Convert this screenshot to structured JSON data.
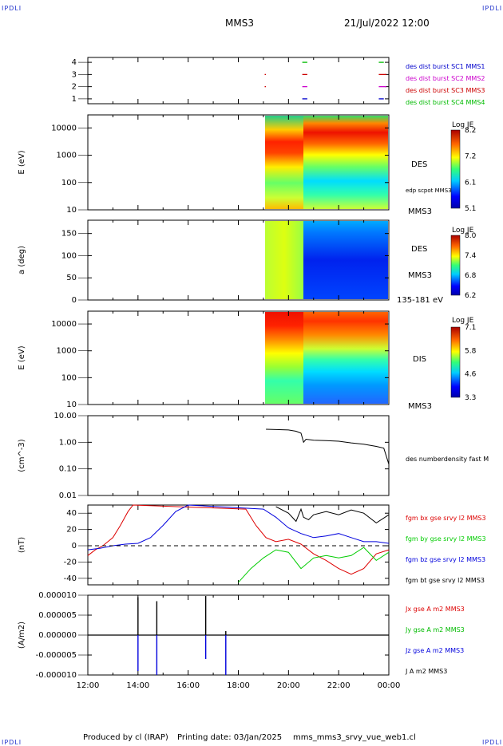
{
  "header": {
    "corner_tl": "IPDLI",
    "corner_tr": "IPDLI",
    "spacecraft": "MMS3",
    "datetime": "21/Jul/2022 12:00"
  },
  "footer": {
    "produced_by": "Produced by cl (IRAP)",
    "printing_date": "Printing date: 03/Jan/2025",
    "filename": "mms_mms3_srvy_vue_web1.cl",
    "corner_bl": "IPDLI",
    "corner_br": "IPDLI"
  },
  "time_axis": {
    "ticks": [
      "12:00",
      "14:00",
      "16:00",
      "18:00",
      "20:00",
      "22:00",
      "00:00"
    ],
    "start_hour": 12,
    "end_hour": 24
  },
  "colors": {
    "jet_low": "#0000aa",
    "jet_high": "#aa0000",
    "bx": "#dd0000",
    "by": "#00cc00",
    "bz": "#0000dd",
    "bt": "#000000",
    "dashed_zero": "#000000"
  },
  "chart_data": [
    {
      "type": "scatter",
      "panel": "burst_availability",
      "ylabel": "",
      "yticks": [
        "1",
        "2",
        "3",
        "4"
      ],
      "ylim": [
        0.6,
        4.4
      ],
      "legend": [
        {
          "label": "des dist burst SC1 MMS1",
          "color": "#0000cc",
          "level": 4
        },
        {
          "label": "des dist burst SC2 MMS2",
          "color": "#cc00cc",
          "level": 3
        },
        {
          "label": "des dist burst SC3 MMS3",
          "color": "#cc0000",
          "level": 2
        },
        {
          "label": "des dist burst SC4 MMS4",
          "color": "#00bb00",
          "level": 1
        }
      ],
      "segments": [
        {
          "level": 4,
          "start": 20.55,
          "end": 20.75,
          "color": "#00bb00"
        },
        {
          "level": 3,
          "start": 19.05,
          "end": 19.1,
          "color": "#cc0000"
        },
        {
          "level": 3,
          "start": 20.55,
          "end": 20.75,
          "color": "#cc0000"
        },
        {
          "level": 2,
          "start": 19.05,
          "end": 19.1,
          "color": "#cc0000"
        },
        {
          "level": 2,
          "start": 20.55,
          "end": 20.75,
          "color": "#cc00cc"
        },
        {
          "level": 1,
          "start": 20.55,
          "end": 20.75,
          "color": "#0000cc"
        },
        {
          "level": 4,
          "start": 23.6,
          "end": 23.8,
          "color": "#00bb00"
        },
        {
          "level": 3,
          "start": 23.6,
          "end": 23.9,
          "color": "#cc0000"
        },
        {
          "level": 2,
          "start": 23.6,
          "end": 23.9,
          "color": "#cc00cc"
        },
        {
          "level": 1,
          "start": 23.6,
          "end": 23.8,
          "color": "#0000cc"
        }
      ]
    },
    {
      "type": "heatmap",
      "panel": "des_energy",
      "ylabel": "E (eV)",
      "yticks": [
        "10",
        "100",
        "1000",
        "10000"
      ],
      "ylim": [
        10,
        30000
      ],
      "y_scale": "log",
      "label": "DES",
      "sublabels": [
        "edp scpot MMS3",
        "MMS3"
      ],
      "colorbar": {
        "title": "Log JE",
        "ticks": [
          "8.2",
          "7.2",
          "6.1",
          "5.1"
        ],
        "range": [
          5.1,
          8.2
        ]
      },
      "data_start_hour": 19.1
    },
    {
      "type": "heatmap",
      "panel": "des_pitch",
      "ylabel": "a (deg)",
      "yticks": [
        "0",
        "50",
        "100",
        "150"
      ],
      "ylim": [
        0,
        180
      ],
      "label": "DES",
      "sublabels": [
        "MMS3",
        "135-181 eV"
      ],
      "colorbar": {
        "title": "Log JE",
        "ticks": [
          "8.0",
          "7.4",
          "6.8",
          "6.2"
        ],
        "range": [
          6.2,
          8.0
        ]
      },
      "data_start_hour": 19.1
    },
    {
      "type": "heatmap",
      "panel": "dis_energy",
      "ylabel": "E (eV)",
      "yticks": [
        "10",
        "100",
        "1000",
        "10000"
      ],
      "ylim": [
        10,
        30000
      ],
      "y_scale": "log",
      "label": "DIS",
      "sublabels": [
        "MMS3"
      ],
      "colorbar": {
        "title": "Log JE",
        "ticks": [
          "7.1",
          "5.8",
          "4.6",
          "3.3"
        ],
        "range": [
          3.3,
          7.1
        ]
      },
      "data_start_hour": 19.1
    },
    {
      "type": "line",
      "panel": "density",
      "ylabel": "(cm^-3)",
      "yticks": [
        "0.01",
        "0.10",
        "1.00",
        "10.00"
      ],
      "ylim": [
        0.01,
        10
      ],
      "y_scale": "log",
      "series": [
        {
          "name": "des numberdensity fast M",
          "color": "#000000",
          "x": [
            19.1,
            19.5,
            20.0,
            20.3,
            20.5,
            20.6,
            20.7,
            21.0,
            21.5,
            22.0,
            22.5,
            23.0,
            23.5,
            23.8,
            24.0
          ],
          "y": [
            3.1,
            3.0,
            2.9,
            2.6,
            2.2,
            1.0,
            1.3,
            1.2,
            1.15,
            1.1,
            0.95,
            0.85,
            0.7,
            0.6,
            0.15
          ]
        }
      ]
    },
    {
      "type": "line",
      "panel": "magnetic_field",
      "ylabel": "(nT)",
      "yticks": [
        "-40",
        "-20",
        "0",
        "20",
        "40"
      ],
      "ylim": [
        -48,
        50
      ],
      "series": [
        {
          "name": "fgm bx gse srvy l2 MMS3",
          "color": "#dd0000",
          "x": [
            12.0,
            12.3,
            12.6,
            13.0,
            13.3,
            13.6,
            13.8,
            18.3,
            18.7,
            19.1,
            19.5,
            20.0,
            20.5,
            21.0,
            21.5,
            22.0,
            22.5,
            23.0,
            23.5,
            24.0
          ],
          "y": [
            -12,
            -5,
            0,
            10,
            25,
            42,
            50,
            45,
            25,
            10,
            5,
            8,
            2,
            -10,
            -18,
            -28,
            -35,
            -28,
            -10,
            -5
          ]
        },
        {
          "name": "fgm by gse srvy l2 MMS3",
          "color": "#00cc00",
          "x": [
            18.0,
            18.5,
            19.0,
            19.5,
            20.0,
            20.5,
            21.0,
            21.5,
            22.0,
            22.5,
            23.0,
            23.5,
            24.0
          ],
          "y": [
            -45,
            -28,
            -15,
            -5,
            -8,
            -28,
            -15,
            -12,
            -15,
            -12,
            -2,
            -18,
            -8
          ]
        },
        {
          "name": "fgm bz gse srvy l2 MMS3",
          "color": "#0000dd",
          "x": [
            12.0,
            12.5,
            13.0,
            13.5,
            14.0,
            14.5,
            15.0,
            15.5,
            16.0,
            19.0,
            19.5,
            20.0,
            20.5,
            21.0,
            21.5,
            22.0,
            22.5,
            23.0,
            23.5,
            24.0
          ],
          "y": [
            -5,
            -3,
            0,
            2,
            3,
            10,
            25,
            42,
            50,
            45,
            35,
            22,
            15,
            10,
            12,
            15,
            10,
            5,
            5,
            3
          ]
        },
        {
          "name": "fgm bt gse srvy l2 MMS3",
          "color": "#000000",
          "x": [
            19.5,
            20.0,
            20.3,
            20.5,
            20.6,
            20.8,
            21.0,
            21.5,
            22.0,
            22.5,
            23.0,
            23.5,
            24.0
          ],
          "y": [
            48,
            40,
            30,
            45,
            35,
            32,
            38,
            42,
            38,
            44,
            40,
            28,
            38
          ]
        }
      ],
      "zero_line": true
    },
    {
      "type": "line",
      "panel": "current_density",
      "ylabel": "(A/m2)",
      "yticks": [
        "-0.000010",
        "-0.000005",
        "0.000000",
        "0.000005",
        "0.000010"
      ],
      "ylim": [
        -1e-05,
        1e-05
      ],
      "series": [
        {
          "name": "Jx gse A m2 MMS3",
          "color": "#dd0000"
        },
        {
          "name": "Jy gse A m2 MMS3",
          "color": "#00bb00"
        },
        {
          "name": "Jz gse A m2 MMS3",
          "color": "#0000dd"
        },
        {
          "name": "J A m2 MMS3",
          "color": "#000000"
        }
      ],
      "spikes": [
        {
          "t": 14.0,
          "top": 9.5e-06,
          "bottom": -9e-06
        },
        {
          "t": 14.75,
          "top": 8.5e-06,
          "bottom": -1e-05
        },
        {
          "t": 16.7,
          "top": 9.8e-06,
          "bottom": -6e-06
        },
        {
          "t": 17.5,
          "top": 1e-06,
          "bottom": -1e-05
        }
      ]
    }
  ]
}
